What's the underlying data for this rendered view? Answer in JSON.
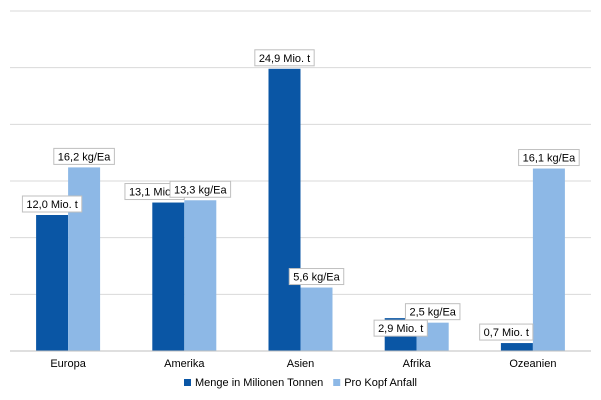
{
  "chart_data": {
    "type": "bar",
    "categories": [
      "Europa",
      "Amerika",
      "Asien",
      "Afrika",
      "Ozeanien"
    ],
    "series": [
      {
        "name": "Menge in Milionen Tonnen",
        "color": "#0a56a5",
        "values": [
          12.0,
          13.1,
          24.9,
          2.9,
          0.7
        ],
        "labels": [
          "12,0 Mio. t",
          "13,1 Mio. t",
          "24,9 Mio. t",
          "2,9 Mio. t",
          "0,7 Mio. t"
        ]
      },
      {
        "name": "Pro Kopf Anfall",
        "color": "#8db8e6",
        "values": [
          16.2,
          13.3,
          5.6,
          2.5,
          16.1
        ],
        "labels": [
          "16,2 kg/Ea",
          "13,3 kg/Ea",
          "5,6 kg/Ea",
          "2,5 kg/Ea",
          "16,1 kg/Ea"
        ]
      }
    ],
    "title": "",
    "xlabel": "",
    "ylabel": "",
    "ylim": [
      0,
      30
    ],
    "grid": true,
    "gridline_values": [
      0,
      5,
      10,
      15,
      20,
      25,
      30
    ],
    "gridline_color": "#d9d9d9",
    "legend_position": "bottom"
  }
}
